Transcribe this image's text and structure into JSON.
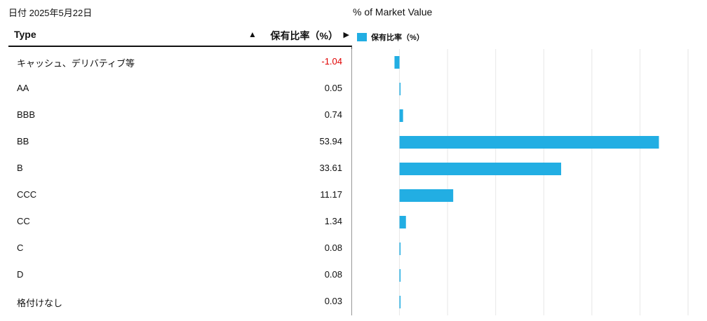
{
  "date_label": "日付 2025年5月22日",
  "table": {
    "header_type": "Type",
    "header_value": "保有比率（%）",
    "sort_up_icon": "▲",
    "sort_right_icon": "▶",
    "rows": [
      {
        "category": "キャッシュ、デリバティブ等",
        "value": "-1.04"
      },
      {
        "category": "AA",
        "value": "0.05"
      },
      {
        "category": "BBB",
        "value": "0.74"
      },
      {
        "category": "BB",
        "value": "53.94"
      },
      {
        "category": "B",
        "value": "33.61"
      },
      {
        "category": "CCC",
        "value": "11.17"
      },
      {
        "category": "CC",
        "value": "1.34"
      },
      {
        "category": "C",
        "value": "0.08"
      },
      {
        "category": "D",
        "value": "0.08"
      },
      {
        "category": "格付けなし",
        "value": "0.03"
      }
    ]
  },
  "chart_data": {
    "type": "bar",
    "orientation": "horizontal",
    "title": "% of Market Value",
    "legend": "top-left",
    "grid": true,
    "categories": [
      "キャッシュ、デリバティブ等",
      "AA",
      "BBB",
      "BB",
      "B",
      "CCC",
      "CC",
      "C",
      "D",
      "格付けなし"
    ],
    "series": [
      {
        "name": "保有比率（%）",
        "values": [
          -1.04,
          0.05,
          0.74,
          53.94,
          33.61,
          11.17,
          1.34,
          0.08,
          0.08,
          0.03
        ],
        "color": "#22aee3"
      }
    ],
    "xlim": [
      -10,
      60
    ]
  },
  "colors": {
    "bar": "#22aee3",
    "negative_text": "#e00000",
    "grid": "#e6e6e6"
  }
}
